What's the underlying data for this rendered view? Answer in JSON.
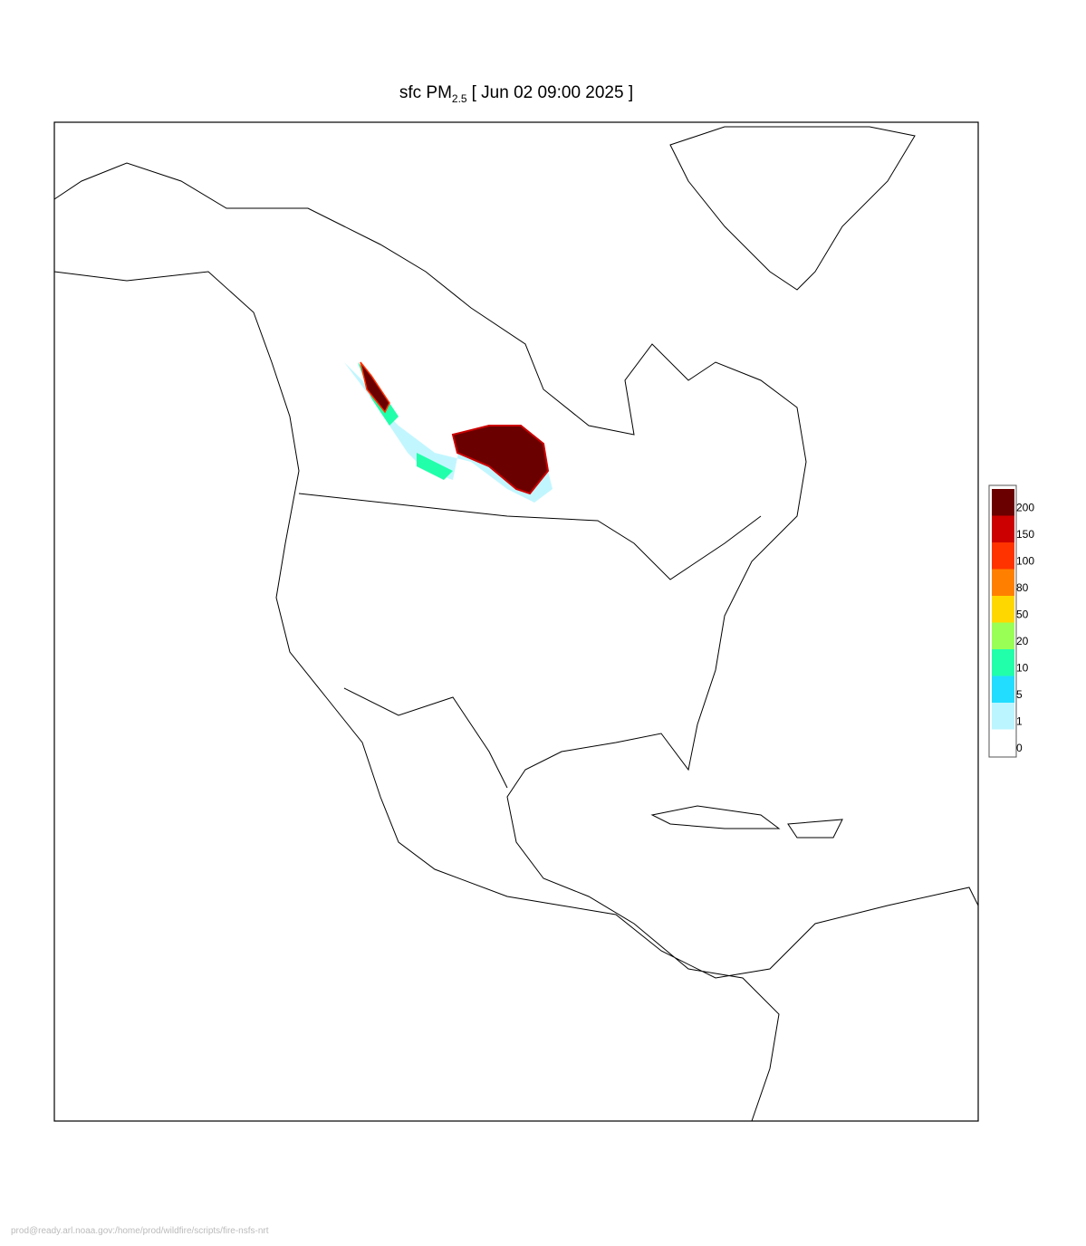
{
  "title": {
    "prefix": "sfc PM",
    "subscript": "2.5",
    "suffix": "[ Jun 02 09:00 2025 ]"
  },
  "legend": {
    "levels": [
      {
        "label": 200,
        "color": "#6b0000"
      },
      {
        "label": 150,
        "color": "#cc0000"
      },
      {
        "label": 100,
        "color": "#ff3300"
      },
      {
        "label": 80,
        "color": "#ff8000"
      },
      {
        "label": 50,
        "color": "#ffd700"
      },
      {
        "label": 20,
        "color": "#99ff55"
      },
      {
        "label": 10,
        "color": "#22ffaa"
      },
      {
        "label": 5,
        "color": "#22ddff"
      },
      {
        "label": 1,
        "color": "#bbf5ff"
      },
      {
        "label": 0,
        "color": "#ffffff"
      }
    ]
  },
  "footer": "prod@ready.arl.noaa.gov:/home/prod/wildfire/scripts/fire-nsfs-nrt"
}
